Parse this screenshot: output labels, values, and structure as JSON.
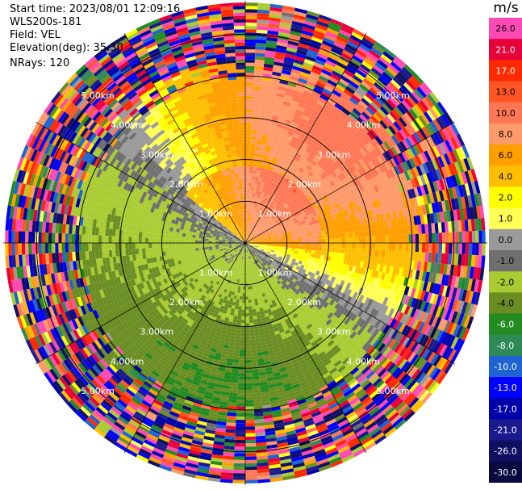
{
  "header": {
    "start_time": "Start time: 2023/08/01 12:09:16",
    "site": "WLS200s-181",
    "field": "Field: VEL",
    "elevation": "Elevation(deg): 35.30",
    "nrays": "NRays: 120"
  },
  "colorbar": {
    "unit": "m/s",
    "labels": [
      "26.0",
      "21.0",
      "17.0",
      "13.0",
      "10.0",
      "8.0",
      "6.0",
      "4.0",
      "2.0",
      "1.0",
      "0.0",
      "-1.0",
      "-2.0",
      "-4.0",
      "-6.0",
      "-8.0",
      "-10.0",
      "-13.0",
      "-17.0",
      "-21.0",
      "-26.0",
      "-30.0"
    ],
    "colors": [
      "#ff49b4",
      "#e8003a",
      "#ff2a00",
      "#ff5522",
      "#ff7755",
      "#ff9a6a",
      "#ff9f00",
      "#ffbf00",
      "#ffff00",
      "#ffff55",
      "#9a9a9a",
      "#6f6f6f",
      "#aacc33",
      "#6b8e23",
      "#228b22",
      "#2e8b57",
      "#1e64d2",
      "#0000ff",
      "#0000aa",
      "#1a1a8c",
      "#101060",
      "#0a0a40"
    ]
  },
  "chart_data": {
    "type": "ppi",
    "field": "VEL",
    "units": "m/s",
    "nrays": 120,
    "elevation_deg": 35.3,
    "range_ring_labels": [
      "1.00km",
      "2.00km",
      "3.00km",
      "4.00km",
      "5.00km"
    ],
    "range_rings_km": [
      1,
      2,
      3,
      4,
      5
    ],
    "max_range_km": 5.8,
    "colorbar_ticks": [
      26.0,
      21.0,
      17.0,
      13.0,
      10.0,
      8.0,
      6.0,
      4.0,
      2.0,
      1.0,
      0.0,
      -1.0,
      -2.0,
      -4.0,
      -6.0,
      -8.0,
      -10.0,
      -13.0,
      -17.0,
      -21.0,
      -26.0,
      -30.0
    ],
    "colorbar_range": [
      -30.0,
      26.0
    ]
  }
}
